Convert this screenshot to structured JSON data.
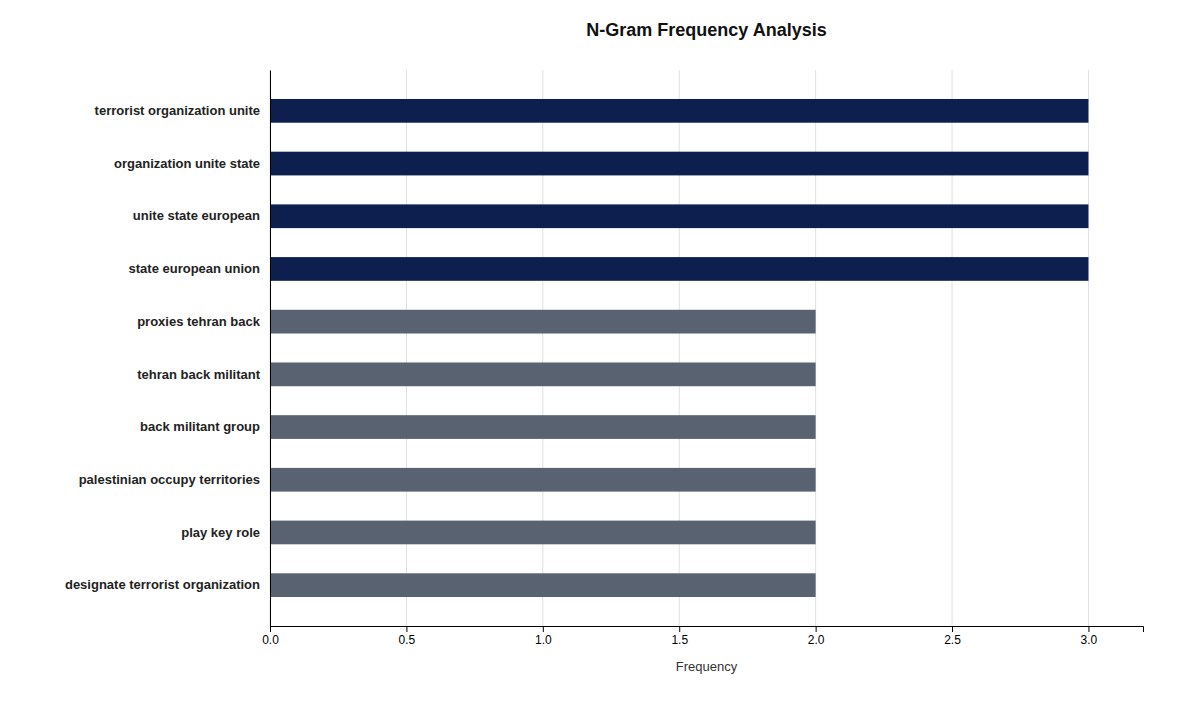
{
  "chart_data": {
    "type": "bar",
    "orientation": "horizontal",
    "title": "N-Gram Frequency Analysis",
    "xlabel": "Frequency",
    "categories": [
      "designate terrorist organization",
      "play key role",
      "palestinian occupy territories",
      "back militant group",
      "tehran back militant",
      "proxies tehran back",
      "state european union",
      "unite state european",
      "organization unite state",
      "terrorist organization unite"
    ],
    "values": [
      2,
      2,
      2,
      2,
      2,
      2,
      3,
      3,
      3,
      3
    ],
    "colors": [
      "#596270",
      "#596270",
      "#596270",
      "#596270",
      "#596270",
      "#596270",
      "#0d1f4e",
      "#0d1f4e",
      "#0d1f4e",
      "#0d1f4e"
    ],
    "xlim": [
      0,
      3.2
    ],
    "xticks": [
      {
        "value": 0,
        "label": "0.0"
      },
      0.5,
      {
        "value": 1,
        "label": "1.0"
      },
      1.5,
      {
        "value": 2,
        "label": "2.0"
      },
      2.5,
      {
        "value": 3,
        "label": "3.0"
      }
    ],
    "grid": true
  }
}
